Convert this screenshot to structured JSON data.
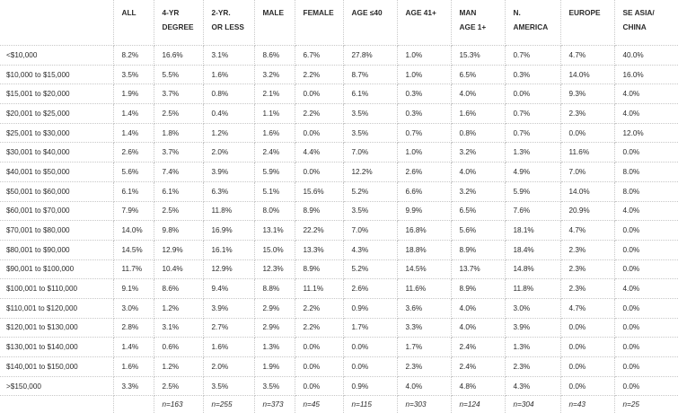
{
  "headers": [
    {
      "line1": "",
      "line2": ""
    },
    {
      "line1": "ALL",
      "line2": ""
    },
    {
      "line1": "4-YR",
      "line2": "DEGREE"
    },
    {
      "line1": "2-YR.",
      "line2": "OR LESS"
    },
    {
      "line1": "MALE",
      "line2": ""
    },
    {
      "line1": "FEMALE",
      "line2": ""
    },
    {
      "line1": "AGE ≤40",
      "line2": ""
    },
    {
      "line1": "AGE 41+",
      "line2": ""
    },
    {
      "line1": "MAN",
      "line2": "AGE 1+"
    },
    {
      "line1": "N.",
      "line2": "AMERICA"
    },
    {
      "line1": "EUROPE",
      "line2": ""
    },
    {
      "line1": "SE ASIA/",
      "line2": "CHINA"
    }
  ],
  "rows": [
    {
      "label": "<$10,000",
      "values": [
        "8.2%",
        "16.6%",
        "3.1%",
        "8.6%",
        "6.7%",
        "27.8%",
        "1.0%",
        "15.3%",
        "0.7%",
        "4.7%",
        "40.0%"
      ]
    },
    {
      "label": "$10,000 to $15,000",
      "values": [
        "3.5%",
        "5.5%",
        "1.6%",
        "3.2%",
        "2.2%",
        "8.7%",
        "1.0%",
        "6.5%",
        "0.3%",
        "14.0%",
        "16.0%"
      ]
    },
    {
      "label": "$15,001 to $20,000",
      "values": [
        "1.9%",
        "3.7%",
        "0.8%",
        "2.1%",
        "0.0%",
        "6.1%",
        "0.3%",
        "4.0%",
        "0.0%",
        "9.3%",
        "4.0%"
      ]
    },
    {
      "label": "$20,001 to $25,000",
      "values": [
        "1.4%",
        "2.5%",
        "0.4%",
        "1.1%",
        "2.2%",
        "3.5%",
        "0.3%",
        "1.6%",
        "0.7%",
        "2.3%",
        "4.0%"
      ]
    },
    {
      "label": "$25,001 to $30,000",
      "values": [
        "1.4%",
        "1.8%",
        "1.2%",
        "1.6%",
        "0.0%",
        "3.5%",
        "0.7%",
        "0.8%",
        "0.7%",
        "0.0%",
        "12.0%"
      ]
    },
    {
      "label": "$30,001 to $40,000",
      "values": [
        "2.6%",
        "3.7%",
        "2.0%",
        "2.4%",
        "4.4%",
        "7.0%",
        "1.0%",
        "3.2%",
        "1.3%",
        "11.6%",
        "0.0%"
      ]
    },
    {
      "label": "$40,001 to $50,000",
      "values": [
        "5.6%",
        "7.4%",
        "3.9%",
        "5.9%",
        "0.0%",
        "12.2%",
        "2.6%",
        "4.0%",
        "4.9%",
        "7.0%",
        "8.0%"
      ]
    },
    {
      "label": "$50,001 to $60,000",
      "values": [
        "6.1%",
        "6.1%",
        "6.3%",
        "5.1%",
        "15.6%",
        "5.2%",
        "6.6%",
        "3.2%",
        "5.9%",
        "14.0%",
        "8.0%"
      ]
    },
    {
      "label": "$60,001 to $70,000",
      "values": [
        "7.9%",
        "2.5%",
        "11.8%",
        "8.0%",
        "8.9%",
        "3.5%",
        "9.9%",
        "6.5%",
        "7.6%",
        "20.9%",
        "4.0%"
      ]
    },
    {
      "label": "$70,001 to $80,000",
      "values": [
        "14.0%",
        "9.8%",
        "16.9%",
        "13.1%",
        "22.2%",
        "7.0%",
        "16.8%",
        "5.6%",
        "18.1%",
        "4.7%",
        "0.0%"
      ]
    },
    {
      "label": "$80,001 to $90,000",
      "values": [
        "14.5%",
        "12.9%",
        "16.1%",
        "15.0%",
        "13.3%",
        "4.3%",
        "18.8%",
        "8.9%",
        "18.4%",
        "2.3%",
        "0.0%"
      ]
    },
    {
      "label": "$90,001 to $100,000",
      "values": [
        "11.7%",
        "10.4%",
        "12.9%",
        "12.3%",
        "8.9%",
        "5.2%",
        "14.5%",
        "13.7%",
        "14.8%",
        "2.3%",
        "0.0%"
      ]
    },
    {
      "label": "$100,001 to $110,000",
      "values": [
        "9.1%",
        "8.6%",
        "9.4%",
        "8.8%",
        "11.1%",
        "2.6%",
        "11.6%",
        "8.9%",
        "11.8%",
        "2.3%",
        "4.0%"
      ]
    },
    {
      "label": "$110,001 to $120,000",
      "values": [
        "3.0%",
        "1.2%",
        "3.9%",
        "2.9%",
        "2.2%",
        "0.9%",
        "3.6%",
        "4.0%",
        "3.0%",
        "4.7%",
        "0.0%"
      ]
    },
    {
      "label": "$120,001 to $130,000",
      "values": [
        "2.8%",
        "3.1%",
        "2.7%",
        "2.9%",
        "2.2%",
        "1.7%",
        "3.3%",
        "4.0%",
        "3.9%",
        "0.0%",
        "0.0%"
      ]
    },
    {
      "label": "$130,001 to $140,000",
      "values": [
        "1.4%",
        "0.6%",
        "1.6%",
        "1.3%",
        "0.0%",
        "0.0%",
        "1.7%",
        "2.4%",
        "1.3%",
        "0.0%",
        "0.0%"
      ]
    },
    {
      "label": "$140,001 to $150,000",
      "values": [
        "1.6%",
        "1.2%",
        "2.0%",
        "1.9%",
        "0.0%",
        "0.0%",
        "2.3%",
        "2.4%",
        "2.3%",
        "0.0%",
        "0.0%"
      ]
    },
    {
      "label": ">$150,000",
      "values": [
        "3.3%",
        "2.5%",
        "3.5%",
        "3.5%",
        "0.0%",
        "0.9%",
        "4.0%",
        "4.8%",
        "4.3%",
        "0.0%",
        "0.0%"
      ]
    }
  ],
  "footer": [
    "",
    "",
    "n=163",
    "n=255",
    "n=373",
    "n=45",
    "n=115",
    "n=303",
    "n=124",
    "n=304",
    "n=43",
    "n=25"
  ]
}
